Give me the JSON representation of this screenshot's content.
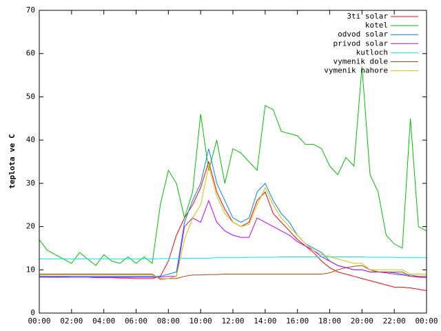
{
  "chart_data": {
    "type": "line",
    "ylabel": "teplota ve C",
    "x": [
      0,
      0.5,
      1,
      1.5,
      2,
      2.5,
      3,
      3.5,
      4,
      4.5,
      5,
      5.5,
      6,
      6.5,
      7,
      7.5,
      8,
      8.5,
      9,
      9.5,
      10,
      10.5,
      11,
      11.5,
      12,
      12.5,
      13,
      13.5,
      14,
      14.5,
      15,
      15.5,
      16,
      16.5,
      17,
      17.5,
      18,
      18.5,
      19,
      19.5,
      20,
      20.5,
      21,
      21.5,
      22,
      22.5,
      23,
      23.5,
      24
    ],
    "xlim": [
      0,
      24
    ],
    "xticks": [
      {
        "value": 0,
        "label": "00:00"
      },
      {
        "value": 2,
        "label": "02:00"
      },
      {
        "value": 4,
        "label": "04:00"
      },
      {
        "value": 6,
        "label": "06:00"
      },
      {
        "value": 8,
        "label": "08:00"
      },
      {
        "value": 10,
        "label": "10:00"
      },
      {
        "value": 12,
        "label": "12:00"
      },
      {
        "value": 14,
        "label": "14:00"
      },
      {
        "value": 16,
        "label": "16:00"
      },
      {
        "value": 18,
        "label": "18:00"
      },
      {
        "value": 20,
        "label": "20:00"
      },
      {
        "value": 22,
        "label": "22:00"
      },
      {
        "value": 24,
        "label": "00:00"
      }
    ],
    "ylim": [
      0,
      70
    ],
    "yticks": [
      0,
      10,
      20,
      30,
      40,
      50,
      60,
      70
    ],
    "grid": false,
    "legend": "upper right",
    "series": [
      {
        "name": "3ti solar",
        "color": "#ff0000",
        "values": [
          8.5,
          8.5,
          8.4,
          8.4,
          8.3,
          8.3,
          8.3,
          8.2,
          8.2,
          8.2,
          8.1,
          8.1,
          8,
          8,
          8,
          8.5,
          12,
          18,
          22,
          25,
          29,
          35,
          28,
          24,
          21,
          20,
          21,
          26,
          28,
          23,
          21,
          19,
          17,
          15.5,
          14,
          12,
          10.5,
          9.5,
          9,
          8.5,
          8,
          7.5,
          7,
          6.5,
          6,
          6,
          5.8,
          5.5,
          5.2
        ]
      },
      {
        "name": "kotel",
        "color": "#00c000",
        "values": [
          17,
          14.5,
          13.5,
          12.5,
          11.5,
          14,
          12.5,
          11,
          13.5,
          12,
          11.5,
          13,
          11.5,
          13,
          11.5,
          25,
          33,
          30,
          22,
          28,
          46,
          33,
          40,
          30,
          38,
          37,
          35,
          33,
          48,
          47,
          42,
          41.5,
          41,
          39,
          39,
          38,
          34,
          32,
          36,
          34,
          57,
          32,
          28,
          18,
          16,
          15,
          45,
          20,
          19
        ]
      },
      {
        "name": "odvod solar",
        "color": "#0080ff",
        "values": [
          8.5,
          8.5,
          8.5,
          8.5,
          8.5,
          8.5,
          8.5,
          8.5,
          8.5,
          8.5,
          8.5,
          8.5,
          8.5,
          8.5,
          8.5,
          8.5,
          9,
          9.5,
          21,
          26,
          30,
          38,
          30,
          26,
          22,
          21,
          22,
          28,
          30,
          26,
          23,
          21,
          18,
          16,
          15,
          14,
          12,
          11,
          10.5,
          10,
          10,
          9.5,
          9.5,
          9.5,
          9.3,
          9,
          8.8,
          8.5,
          8.5
        ]
      },
      {
        "name": "privod solar",
        "color": "#c000ff",
        "values": [
          8.3,
          8.3,
          8.3,
          8.3,
          8.3,
          8.3,
          8.3,
          8.3,
          8.3,
          8.3,
          8.3,
          8.3,
          8.3,
          8.3,
          8.3,
          8.3,
          8.5,
          8.5,
          20,
          22,
          21,
          26,
          21,
          19,
          18,
          17.5,
          17.5,
          22,
          21,
          20,
          19,
          18,
          16.5,
          15.5,
          14.5,
          13,
          12,
          11,
          10.5,
          10,
          10,
          9.5,
          9.5,
          9.3,
          9,
          8.8,
          8.5,
          8.3,
          8.2
        ]
      },
      {
        "name": "kutloch",
        "color": "#00eeee",
        "values": [
          12.5,
          12.5,
          12.5,
          12.5,
          12.5,
          12.5,
          12.5,
          12.5,
          12.5,
          12.5,
          12.5,
          12.5,
          12.5,
          12.5,
          12.5,
          12.6,
          12.6,
          12.6,
          12.7,
          12.7,
          12.7,
          12.7,
          12.8,
          12.8,
          12.8,
          12.8,
          12.9,
          12.9,
          12.9,
          12.9,
          13,
          13,
          13,
          13,
          13,
          13,
          13,
          13,
          13,
          13,
          13,
          12.9,
          12.9,
          12.9,
          12.9,
          12.8,
          12.8,
          12.8,
          12.8
        ]
      },
      {
        "name": "vymenik dole",
        "color": "#c04000",
        "values": [
          9,
          9,
          9,
          9,
          9,
          9,
          9,
          9,
          9,
          9,
          9,
          9,
          9,
          9,
          9,
          7.8,
          8,
          8,
          8.5,
          8.8,
          8.8,
          8.9,
          8.9,
          9,
          9,
          9,
          9,
          9,
          9,
          9,
          9,
          9,
          9,
          9,
          9,
          9,
          9.3,
          10,
          10.5,
          10.8,
          11,
          10,
          9.5,
          9.5,
          9.5,
          9.5,
          8.5,
          8.5,
          8.5
        ]
      },
      {
        "name": "vymenik nahore",
        "color": "#c8c800",
        "values": [
          8.8,
          8.8,
          8.8,
          8.8,
          8.8,
          8.8,
          8.8,
          8.8,
          8.8,
          8.8,
          8.8,
          8.8,
          8.8,
          8.8,
          8.8,
          8,
          8,
          8.5,
          17,
          22,
          25,
          34,
          27,
          23,
          21,
          20,
          20.5,
          25,
          29,
          25,
          22,
          20,
          18,
          16,
          14.5,
          13.5,
          13,
          12.5,
          12,
          11.5,
          11.5,
          10,
          10,
          10,
          10,
          10,
          9,
          9,
          9
        ]
      }
    ]
  }
}
